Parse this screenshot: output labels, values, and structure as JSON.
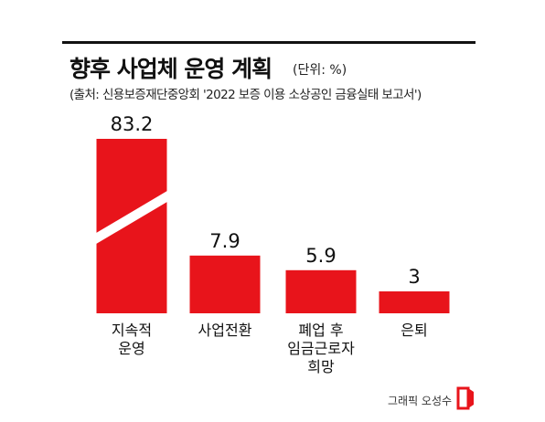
{
  "header": {
    "title": "향후 사업체 운영 계획",
    "unit": "(단위: %)",
    "source": "(출처: 신용보증재단중앙회 '2022 보증 이용 소상공인 금융실태 보고서')"
  },
  "colors": {
    "bar": "#e8141b",
    "text": "#111111",
    "rule": "#111111"
  },
  "chart_data": {
    "type": "bar",
    "categories": [
      [
        "지속적",
        "운영"
      ],
      [
        "사업전환"
      ],
      [
        "폐업 후",
        "임금근로자",
        "희망"
      ],
      [
        "은퇴"
      ]
    ],
    "values": [
      83.2,
      7.9,
      5.9,
      3
    ],
    "value_labels": [
      "83.2",
      "7.9",
      "5.9",
      "3"
    ],
    "axis_break": true,
    "grid": false,
    "legend": "none"
  },
  "credit": {
    "text": "그래픽 오성수",
    "logo_icon": "newspaper-logo-icon"
  }
}
